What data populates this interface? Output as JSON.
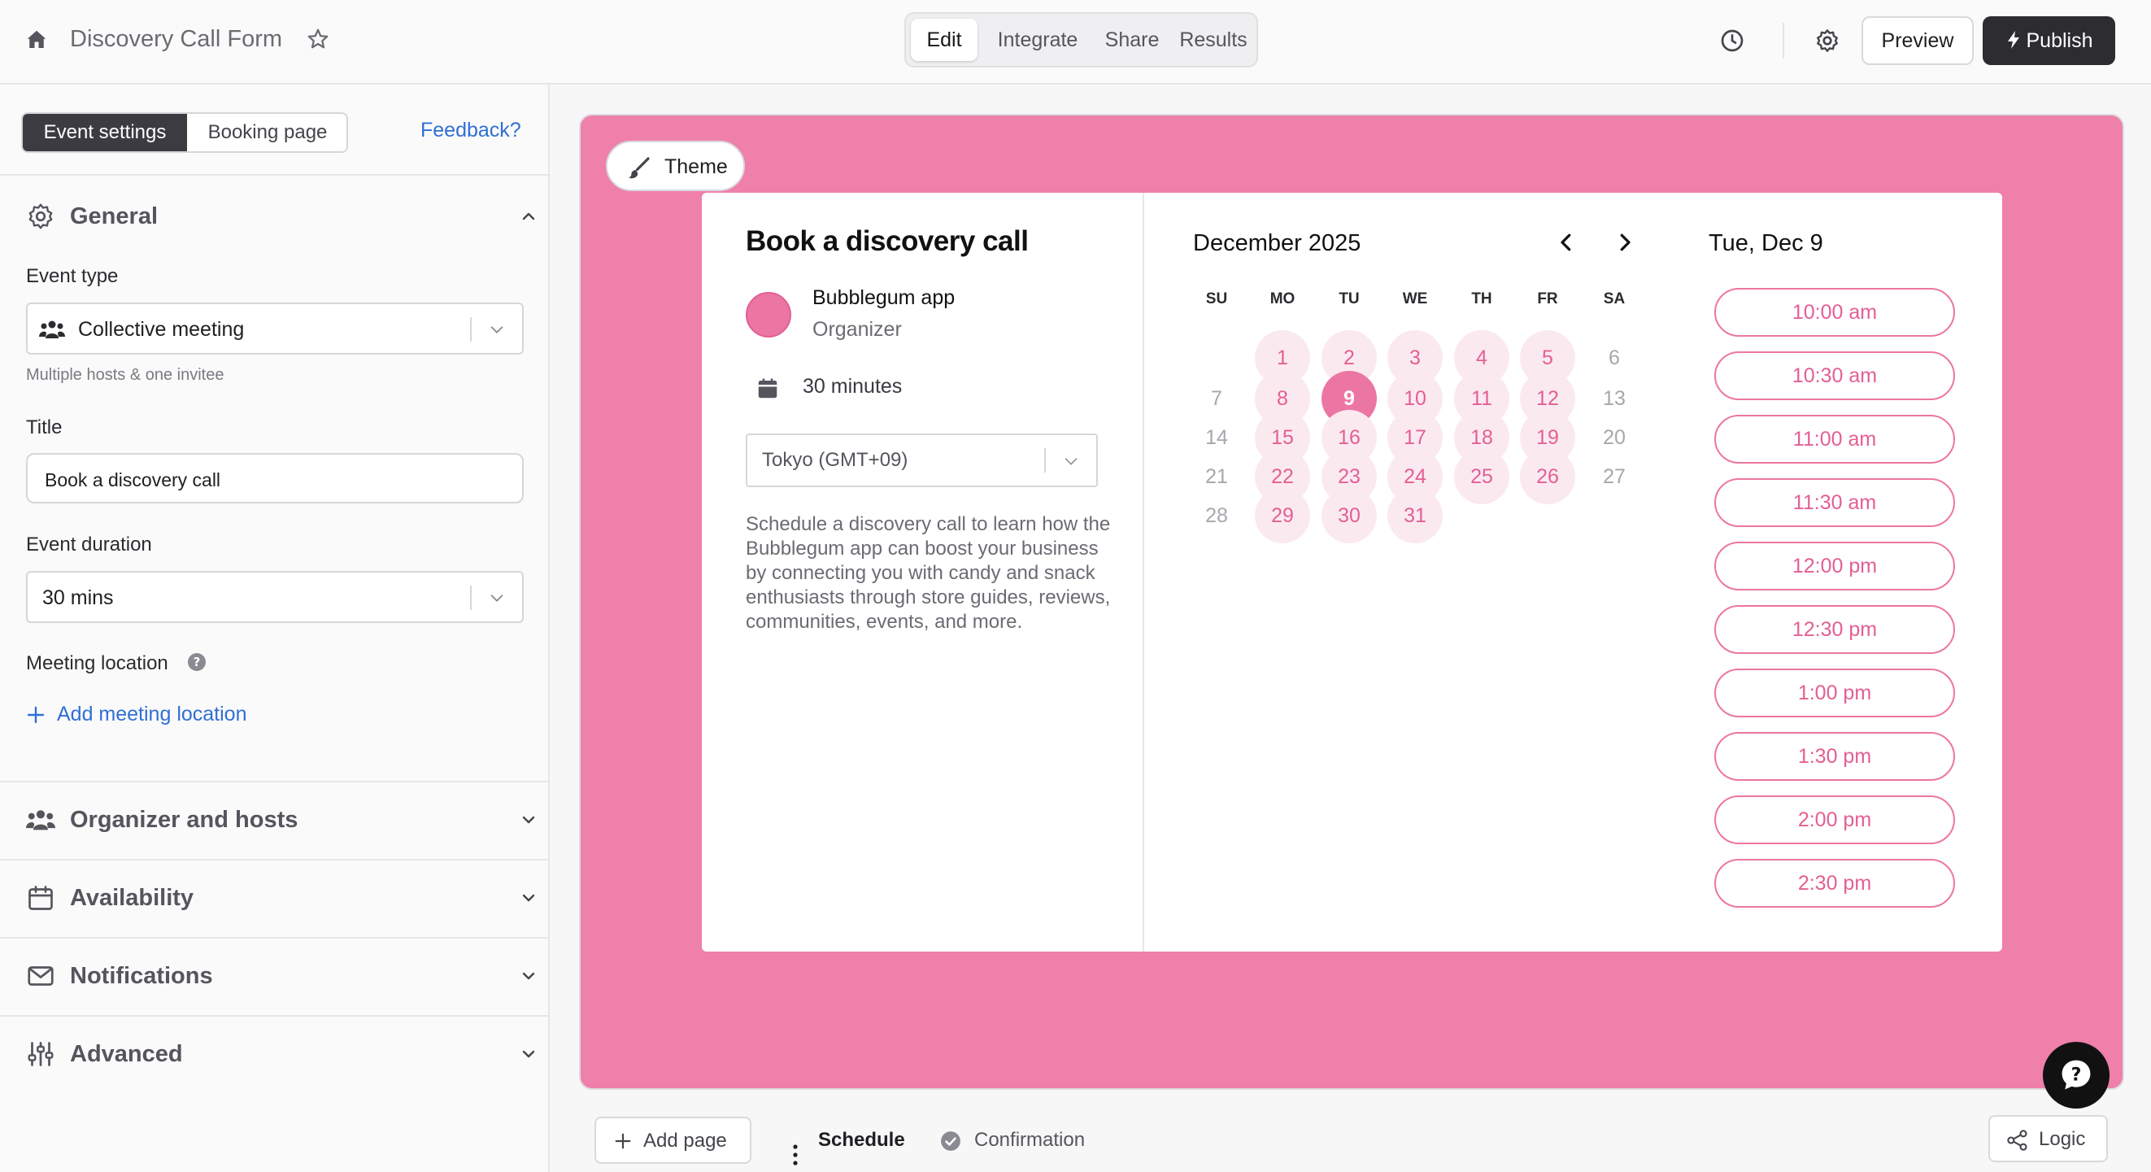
{
  "topbar": {
    "form_title": "Discovery Call Form",
    "modes": [
      "Edit",
      "Integrate",
      "Share",
      "Results"
    ],
    "active_mode": "Edit",
    "preview_label": "Preview",
    "publish_label": "Publish"
  },
  "sidebar": {
    "tabs": {
      "event_settings": "Event settings",
      "booking_page": "Booking page"
    },
    "feedback_label": "Feedback?",
    "general": {
      "title": "General",
      "event_type_label": "Event type",
      "event_type_value": "Collective meeting",
      "event_type_hint": "Multiple hosts & one invitee",
      "title_label": "Title",
      "title_value": "Book a discovery call",
      "duration_label": "Event duration",
      "duration_value": "30 mins",
      "location_label": "Meeting location",
      "add_location_label": "Add meeting location"
    },
    "sections": {
      "organizer": "Organizer and hosts",
      "availability": "Availability",
      "notifications": "Notifications",
      "advanced": "Advanced"
    }
  },
  "canvas": {
    "theme_label": "Theme",
    "accent_color": "#ee80aa",
    "booking": {
      "title": "Book a discovery call",
      "organizer_name": "Bubblegum app",
      "organizer_role": "Organizer",
      "duration": "30 minutes",
      "timezone": "Tokyo (GMT+09)",
      "description": "Schedule a discovery call to learn how the Bubblegum app can boost your business by connecting you with candy and snack enthusiasts through store guides, reviews, communities, events, and more."
    },
    "calendar": {
      "month_label": "December 2025",
      "weekdays": [
        "SU",
        "MO",
        "TU",
        "WE",
        "TH",
        "FR",
        "SA"
      ],
      "days": [
        {
          "label": "1",
          "status": "available"
        },
        {
          "label": "2",
          "status": "available"
        },
        {
          "label": "3",
          "status": "available"
        },
        {
          "label": "4",
          "status": "available"
        },
        {
          "label": "5",
          "status": "available"
        },
        {
          "label": "6",
          "status": "unavailable"
        },
        {
          "label": "7",
          "status": "unavailable"
        },
        {
          "label": "8",
          "status": "available"
        },
        {
          "label": "9",
          "status": "selected"
        },
        {
          "label": "10",
          "status": "available"
        },
        {
          "label": "11",
          "status": "available"
        },
        {
          "label": "12",
          "status": "available"
        },
        {
          "label": "13",
          "status": "unavailable"
        },
        {
          "label": "14",
          "status": "unavailable"
        },
        {
          "label": "15",
          "status": "available"
        },
        {
          "label": "16",
          "status": "available"
        },
        {
          "label": "17",
          "status": "available"
        },
        {
          "label": "18",
          "status": "available"
        },
        {
          "label": "19",
          "status": "available"
        },
        {
          "label": "20",
          "status": "unavailable"
        },
        {
          "label": "21",
          "status": "unavailable"
        },
        {
          "label": "22",
          "status": "available"
        },
        {
          "label": "23",
          "status": "available"
        },
        {
          "label": "24",
          "status": "available"
        },
        {
          "label": "25",
          "status": "available"
        },
        {
          "label": "26",
          "status": "available"
        },
        {
          "label": "27",
          "status": "unavailable"
        },
        {
          "label": "28",
          "status": "unavailable"
        },
        {
          "label": "29",
          "status": "available"
        },
        {
          "label": "30",
          "status": "available"
        },
        {
          "label": "31",
          "status": "available"
        }
      ]
    },
    "selected_date_label": "Tue, Dec 9",
    "time_slots": [
      "10:00 am",
      "10:30 am",
      "11:00 am",
      "11:30 am",
      "12:00 pm",
      "12:30 pm",
      "1:00 pm",
      "1:30 pm",
      "2:00 pm",
      "2:30 pm"
    ]
  },
  "bottombar": {
    "add_page_label": "Add page",
    "pages": [
      "Schedule",
      "Confirmation"
    ],
    "logic_label": "Logic"
  }
}
